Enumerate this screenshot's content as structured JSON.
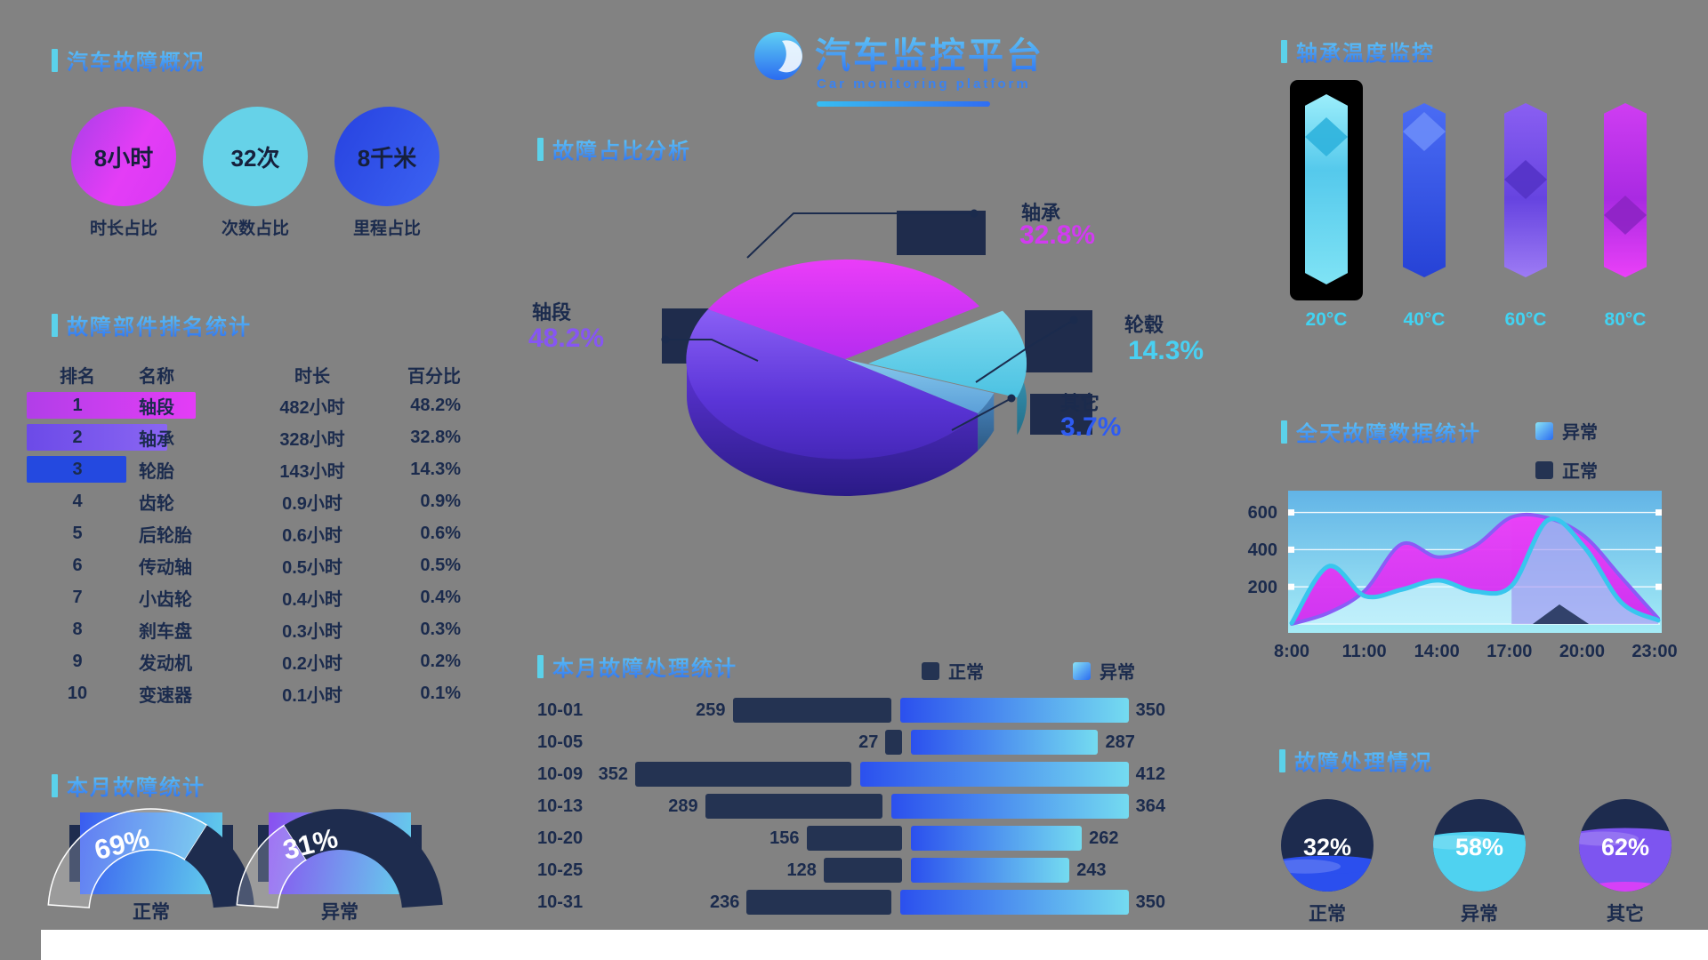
{
  "palette": {
    "navy": "#1b2b4d",
    "magenta": "#d13bf0",
    "purple": "#8656f2",
    "blue": "#2e5bf2",
    "cyan": "#49d0f2",
    "accent_bar": "#5bd1ea",
    "title_gradient_top": "#6ad7f7",
    "title_gradient_bottom": "#2b6cf0"
  },
  "header": {
    "title": "汽车监控平台",
    "subtitle": "Car monitoring platform",
    "logo": "car-logo-icon"
  },
  "sections": {
    "stats": {
      "title": "汽车故障概况",
      "items": [
        {
          "value": "8小时",
          "label": "时长占比",
          "theme": "magenta"
        },
        {
          "value": "32次",
          "label": "次数占比",
          "theme": "cyan"
        },
        {
          "value": "8千米",
          "label": "里程占比",
          "theme": "blue"
        }
      ]
    },
    "ranking": {
      "title": "故障部件排名统计",
      "headers": [
        "排名",
        "名称",
        "时长",
        "百分比"
      ],
      "rows": [
        [
          "1",
          "轴段",
          "482小时",
          "48.2%"
        ],
        [
          "2",
          "轴承",
          "328小时",
          "32.8%"
        ],
        [
          "3",
          "轮胎",
          "143小时",
          "14.3%"
        ],
        [
          "4",
          "齿轮",
          "0.9小时",
          "0.9%"
        ],
        [
          "5",
          "后轮胎",
          "0.6小时",
          "0.6%"
        ],
        [
          "6",
          "传动轴",
          "0.5小时",
          "0.5%"
        ],
        [
          "7",
          "小齿轮",
          "0.4小时",
          "0.4%"
        ],
        [
          "8",
          "刹车盘",
          "0.3小时",
          "0.3%"
        ],
        [
          "9",
          "发动机",
          "0.2小时",
          "0.2%"
        ],
        [
          "10",
          "变速器",
          "0.1小时",
          "0.1%"
        ]
      ]
    },
    "monthly": {
      "title": "本月故障统计",
      "gauges": [
        {
          "pct": 69,
          "pct_text": "69%",
          "label": "正常",
          "theme": "blue"
        },
        {
          "pct": 31,
          "pct_text": "31%",
          "label": "异常",
          "theme": "purple"
        }
      ]
    },
    "pie": {
      "title": "故障占比分析",
      "slices": [
        {
          "name": "轴承",
          "pct": 32.8,
          "pct_text": "32.8%",
          "color": "magenta"
        },
        {
          "name": "轴段",
          "pct": 48.2,
          "pct_text": "48.2%",
          "color": "purple"
        },
        {
          "name": "轮毂",
          "pct": 14.3,
          "pct_text": "14.3%",
          "color": "cyan"
        },
        {
          "name": "其它",
          "pct": 3.7,
          "pct_text": "3.7%",
          "color": "blue"
        }
      ]
    },
    "process": {
      "title": "本月故障处理统计",
      "legend": [
        {
          "label": "正常",
          "swatch": "dark"
        },
        {
          "label": "异常",
          "swatch": "grad"
        }
      ],
      "max": 450,
      "rows": [
        {
          "date": "10-01",
          "normal": 259,
          "abnormal": 350
        },
        {
          "date": "10-05",
          "normal": 27,
          "abnormal": 287
        },
        {
          "date": "10-09",
          "normal": 352,
          "abnormal": 412
        },
        {
          "date": "10-13",
          "normal": 289,
          "abnormal": 364
        },
        {
          "date": "10-20",
          "normal": 156,
          "abnormal": 262
        },
        {
          "date": "10-25",
          "normal": 128,
          "abnormal": 243
        },
        {
          "date": "10-31",
          "normal": 236,
          "abnormal": 350
        }
      ]
    },
    "temperature": {
      "title": "轴承温度监控",
      "items": [
        {
          "label": "20°C",
          "theme": "cyan",
          "selected": true
        },
        {
          "label": "40°C",
          "theme": "blue",
          "selected": false
        },
        {
          "label": "60°C",
          "theme": "purple",
          "selected": false
        },
        {
          "label": "80°C",
          "theme": "magenta",
          "selected": false
        }
      ]
    },
    "trend": {
      "title": "全天故障数据统计",
      "legend": [
        {
          "label": "异常",
          "swatch": "grad"
        },
        {
          "label": "正常",
          "swatch": "dark"
        }
      ],
      "yticks": [
        "600",
        "400",
        "200"
      ],
      "xticks": [
        "8:00",
        "11:00",
        "14:00",
        "17:00",
        "20:00",
        "23:00"
      ],
      "ymax": 660,
      "series": [
        {
          "name": "异常",
          "values": [
            0,
            60,
            180,
            430,
            360,
            420,
            575,
            570,
            470,
            250,
            30
          ]
        },
        {
          "name": "正常",
          "values": [
            5,
            310,
            150,
            185,
            235,
            175,
            205,
            560,
            410,
            115,
            20
          ]
        }
      ]
    },
    "handle": {
      "title": "故障处理情况",
      "items": [
        {
          "pct": 32,
          "pct_text": "32%",
          "label": "正常",
          "theme": "blue"
        },
        {
          "pct": 58,
          "pct_text": "58%",
          "label": "异常",
          "theme": "cyan"
        },
        {
          "pct": 62,
          "pct_text": "62%",
          "label": "其它",
          "theme": "purple"
        }
      ]
    }
  },
  "chart_data": [
    {
      "type": "pie",
      "title": "故障占比分析",
      "labels": [
        "轴承",
        "轴段",
        "轮毂",
        "其它"
      ],
      "values": [
        32.8,
        48.2,
        14.3,
        3.7
      ]
    },
    {
      "type": "bar",
      "subtype": "tornado-horizontal",
      "title": "本月故障处理统计",
      "categories": [
        "10-01",
        "10-05",
        "10-09",
        "10-13",
        "10-20",
        "10-25",
        "10-31"
      ],
      "series": [
        {
          "name": "正常",
          "values": [
            259,
            27,
            352,
            289,
            156,
            128,
            236
          ]
        },
        {
          "name": "异常",
          "values": [
            350,
            287,
            412,
            364,
            262,
            243,
            350
          ]
        }
      ]
    },
    {
      "type": "area",
      "title": "全天故障数据统计",
      "ylim": [
        0,
        660
      ],
      "yticks": [
        200,
        400,
        600
      ],
      "x": [
        "8:00",
        "11:00",
        "14:00",
        "17:00",
        "20:00",
        "23:00"
      ],
      "series": [
        {
          "name": "异常",
          "values": [
            0,
            60,
            180,
            430,
            360,
            420,
            575,
            570,
            470,
            250,
            30
          ]
        },
        {
          "name": "正常",
          "values": [
            5,
            310,
            150,
            185,
            235,
            175,
            205,
            560,
            410,
            115,
            20
          ]
        }
      ],
      "legend_position": "top-right",
      "grid": true
    },
    {
      "type": "gauge",
      "title": "本月故障统计",
      "values": [
        {
          "label": "正常",
          "pct": 69
        },
        {
          "label": "异常",
          "pct": 31
        }
      ]
    },
    {
      "type": "liquid-circle",
      "title": "故障处理情况",
      "values": [
        {
          "label": "正常",
          "pct": 32
        },
        {
          "label": "异常",
          "pct": 58
        },
        {
          "label": "其它",
          "pct": 62
        }
      ]
    },
    {
      "type": "column-decorative",
      "title": "轴承温度监控",
      "categories": [
        "20°C",
        "40°C",
        "60°C",
        "80°C"
      ],
      "selected": "20°C"
    },
    {
      "type": "table",
      "title": "故障部件排名统计",
      "headers": [
        "排名",
        "名称",
        "时长",
        "百分比"
      ],
      "rows": [
        [
          "1",
          "轴段",
          "482小时",
          "48.2%"
        ],
        [
          "2",
          "轴承",
          "328小时",
          "32.8%"
        ],
        [
          "3",
          "轮胎",
          "143小时",
          "14.3%"
        ],
        [
          "4",
          "齿轮",
          "0.9小时",
          "0.9%"
        ],
        [
          "5",
          "后轮胎",
          "0.6小时",
          "0.6%"
        ],
        [
          "6",
          "传动轴",
          "0.5小时",
          "0.5%"
        ],
        [
          "7",
          "小齿轮",
          "0.4小时",
          "0.4%"
        ],
        [
          "8",
          "刹车盘",
          "0.3小时",
          "0.3%"
        ],
        [
          "9",
          "发动机",
          "0.2小时",
          "0.2%"
        ],
        [
          "10",
          "变速器",
          "0.1小时",
          "0.1%"
        ]
      ]
    }
  ]
}
